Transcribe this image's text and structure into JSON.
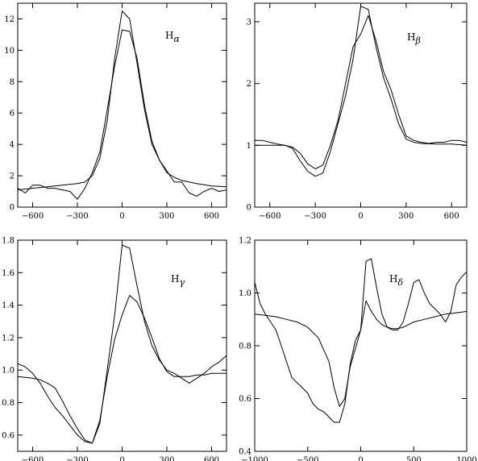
{
  "chart_data": [
    {
      "type": "line",
      "title": "",
      "annotation": "Hα",
      "annotation_base": "H",
      "annotation_sub": "α",
      "xlabel": "",
      "ylabel": "",
      "xlim": [
        -700,
        700
      ],
      "ylim": [
        0,
        13
      ],
      "xticks": [
        -600,
        -300,
        0,
        300,
        600
      ],
      "yticks": [
        0,
        2,
        4,
        6,
        8,
        10,
        12
      ],
      "xtick_labels": [
        "−600",
        "−300",
        "0",
        "300",
        "600"
      ],
      "ytick_labels": [
        "0",
        "2",
        "4",
        "6",
        "8",
        "10",
        "12"
      ],
      "grid": false,
      "series": [
        {
          "x": [
            -700,
            -650,
            -600,
            -550,
            -500,
            -450,
            -400,
            -350,
            -300,
            -250,
            -200,
            -150,
            -100,
            -50,
            0,
            50,
            100,
            150,
            200,
            250,
            300,
            350,
            400,
            450,
            500,
            550,
            600,
            650,
            700
          ],
          "y": [
            1.2,
            0.9,
            1.4,
            1.4,
            1.2,
            1.2,
            1.1,
            1.0,
            0.5,
            1.2,
            2.2,
            3.5,
            6.2,
            9.0,
            11.3,
            11.2,
            9.5,
            6.5,
            4.2,
            3.0,
            2.3,
            1.6,
            1.6,
            0.9,
            0.7,
            1.0,
            1.2,
            1.0,
            1.1
          ]
        },
        {
          "x": [
            -700,
            -600,
            -500,
            -400,
            -300,
            -250,
            -200,
            -150,
            -100,
            -50,
            0,
            50,
            100,
            150,
            200,
            250,
            300,
            350,
            400,
            500,
            600,
            700
          ],
          "y": [
            1.1,
            1.2,
            1.3,
            1.4,
            1.5,
            1.6,
            2.0,
            3.1,
            5.5,
            9.5,
            12.5,
            12.0,
            9.2,
            6.2,
            4.0,
            3.0,
            2.2,
            1.9,
            1.7,
            1.5,
            1.35,
            1.3
          ]
        }
      ]
    },
    {
      "type": "line",
      "title": "",
      "annotation": "Hβ",
      "annotation_base": "H",
      "annotation_sub": "β",
      "xlabel": "",
      "ylabel": "",
      "xlim": [
        -700,
        700
      ],
      "ylim": [
        0,
        3.3
      ],
      "xticks": [
        -600,
        -300,
        0,
        300,
        600
      ],
      "yticks": [
        0,
        1,
        2,
        3
      ],
      "xtick_labels": [
        "−600",
        "−300",
        "0",
        "300",
        "600"
      ],
      "ytick_labels": [
        "0",
        "1",
        "2",
        "3"
      ],
      "grid": false,
      "series": [
        {
          "x": [
            -700,
            -650,
            -600,
            -550,
            -500,
            -450,
            -400,
            -350,
            -300,
            -250,
            -200,
            -150,
            -100,
            -50,
            0,
            50,
            100,
            150,
            200,
            250,
            300,
            350,
            400,
            450,
            500,
            550,
            600,
            650,
            700
          ],
          "y": [
            1.08,
            1.08,
            1.05,
            1.02,
            1.0,
            0.97,
            0.87,
            0.7,
            0.62,
            0.68,
            1.0,
            1.4,
            2.0,
            2.6,
            2.8,
            3.1,
            2.7,
            2.2,
            1.9,
            1.5,
            1.15,
            1.08,
            1.05,
            1.03,
            1.05,
            1.05,
            1.08,
            1.08,
            1.05
          ]
        },
        {
          "x": [
            -700,
            -600,
            -500,
            -450,
            -400,
            -350,
            -300,
            -250,
            -200,
            -150,
            -100,
            -50,
            0,
            50,
            100,
            150,
            200,
            250,
            300,
            350,
            400,
            500,
            600,
            700
          ],
          "y": [
            1.0,
            1.0,
            1.0,
            0.95,
            0.75,
            0.58,
            0.5,
            0.55,
            0.9,
            1.35,
            1.8,
            2.4,
            3.25,
            3.2,
            2.6,
            2.1,
            1.75,
            1.35,
            1.1,
            1.05,
            1.03,
            1.02,
            1.02,
            1.0
          ]
        }
      ]
    },
    {
      "type": "line",
      "title": "",
      "annotation": "Hγ",
      "annotation_base": "H",
      "annotation_sub": "γ",
      "xlabel": "",
      "ylabel": "",
      "xlim": [
        -700,
        700
      ],
      "ylim": [
        0.5,
        1.8
      ],
      "xticks": [
        -600,
        -300,
        0,
        300,
        600
      ],
      "yticks": [
        0.6,
        0.8,
        1.0,
        1.2,
        1.4,
        1.6,
        1.8
      ],
      "xtick_labels": [
        "−600",
        "−300",
        "0",
        "300",
        "600"
      ],
      "ytick_labels": [
        "0.6",
        "0.8",
        "1.0",
        "1.2",
        "1.4",
        "1.6",
        "1.8"
      ],
      "grid": false,
      "series": [
        {
          "x": [
            -700,
            -650,
            -600,
            -550,
            -500,
            -450,
            -400,
            -350,
            -300,
            -250,
            -200,
            -150,
            -100,
            -50,
            0,
            50,
            100,
            150,
            200,
            250,
            300,
            350,
            400,
            450,
            500,
            550,
            600,
            650,
            700
          ],
          "y": [
            0.96,
            0.955,
            0.95,
            0.94,
            0.92,
            0.89,
            0.81,
            0.72,
            0.64,
            0.57,
            0.55,
            0.69,
            0.96,
            1.19,
            1.34,
            1.46,
            1.42,
            1.32,
            1.2,
            1.07,
            0.99,
            0.96,
            0.96,
            0.96,
            0.97,
            0.97,
            0.98,
            0.98,
            0.98
          ]
        },
        {
          "x": [
            -700,
            -650,
            -600,
            -550,
            -500,
            -450,
            -400,
            -350,
            -300,
            -250,
            -200,
            -150,
            -100,
            -50,
            0,
            50,
            100,
            150,
            200,
            250,
            300,
            350,
            400,
            450,
            500,
            550,
            600,
            650,
            700
          ],
          "y": [
            1.04,
            1.02,
            0.98,
            0.92,
            0.84,
            0.77,
            0.72,
            0.66,
            0.6,
            0.56,
            0.55,
            0.67,
            1.0,
            1.34,
            1.77,
            1.75,
            1.52,
            1.3,
            1.15,
            1.06,
            1.0,
            0.98,
            0.95,
            0.92,
            0.95,
            0.98,
            1.02,
            1.05,
            1.09
          ]
        }
      ]
    },
    {
      "type": "line",
      "title": "",
      "annotation": "Hδ",
      "annotation_base": "H",
      "annotation_sub": "δ",
      "xlabel": "",
      "ylabel": "",
      "xlim": [
        -1000,
        1000
      ],
      "ylim": [
        0.4,
        1.2
      ],
      "xticks": [
        -1000,
        -500,
        0,
        500,
        1000
      ],
      "yticks": [
        0.4,
        0.6,
        0.8,
        1.0,
        1.2
      ],
      "xtick_labels": [
        "−1000",
        "−500",
        "0",
        "500",
        "1000"
      ],
      "ytick_labels": [
        "0.4",
        "0.6",
        "0.8",
        "1.0",
        "1.2"
      ],
      "grid": false,
      "series": [
        {
          "x": [
            -1000,
            -900,
            -800,
            -700,
            -600,
            -500,
            -400,
            -300,
            -250,
            -200,
            -150,
            -100,
            0,
            50,
            100,
            150,
            200,
            250,
            300,
            350,
            400,
            500,
            600,
            700,
            800,
            900,
            1000
          ],
          "y": [
            0.92,
            0.915,
            0.91,
            0.9,
            0.89,
            0.87,
            0.83,
            0.74,
            0.64,
            0.57,
            0.6,
            0.72,
            0.86,
            0.97,
            0.93,
            0.9,
            0.88,
            0.87,
            0.865,
            0.865,
            0.87,
            0.89,
            0.9,
            0.91,
            0.92,
            0.925,
            0.93
          ]
        },
        {
          "x": [
            -1000,
            -950,
            -900,
            -850,
            -800,
            -750,
            -700,
            -650,
            -600,
            -550,
            -500,
            -450,
            -400,
            -350,
            -300,
            -250,
            -200,
            -150,
            -100,
            -50,
            0,
            50,
            100,
            150,
            200,
            250,
            300,
            350,
            400,
            450,
            500,
            550,
            600,
            650,
            700,
            750,
            800,
            850,
            900,
            950,
            1000
          ],
          "y": [
            1.04,
            0.96,
            0.92,
            0.89,
            0.86,
            0.8,
            0.74,
            0.68,
            0.66,
            0.64,
            0.62,
            0.58,
            0.56,
            0.55,
            0.53,
            0.51,
            0.51,
            0.58,
            0.73,
            0.82,
            0.86,
            1.12,
            1.13,
            1.02,
            0.92,
            0.87,
            0.86,
            0.86,
            0.89,
            0.96,
            1.04,
            1.05,
            1.0,
            0.96,
            0.94,
            0.92,
            0.89,
            0.93,
            1.03,
            1.06,
            1.08
          ]
        }
      ]
    }
  ]
}
